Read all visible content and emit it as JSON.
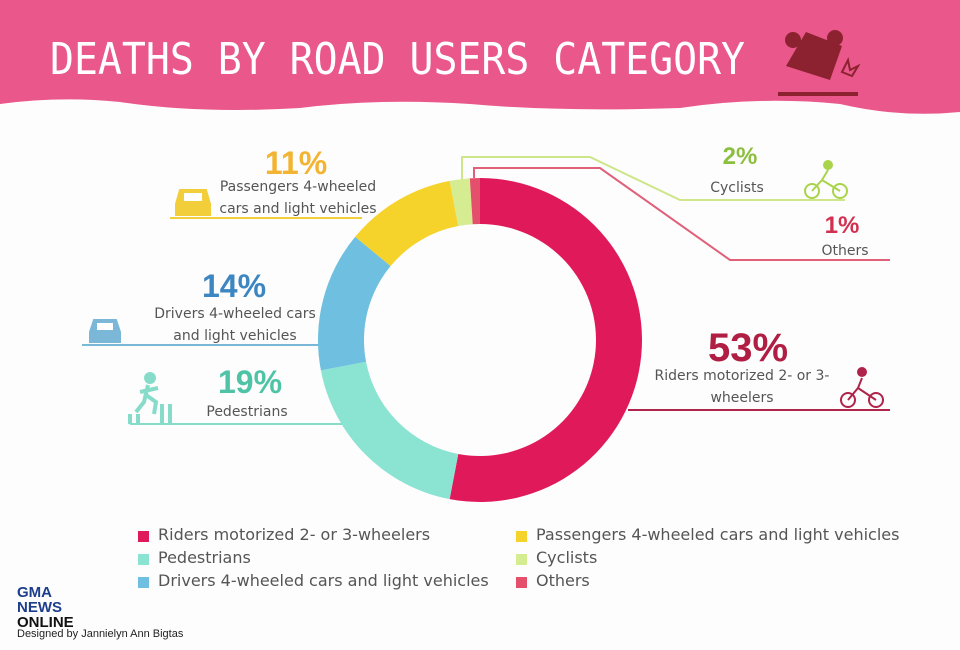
{
  "chart_data": {
    "type": "donut",
    "title": "DEATHS BY ROAD USERS CATEGORY",
    "categories": [
      "Riders motorized 2- or 3-wheelers",
      "Pedestrians",
      "Drivers 4-wheeled cars and light vehicles",
      "Passengers 4-wheeled cars and light vehicles",
      "Cyclists",
      "Others"
    ],
    "values": [
      53,
      19,
      14,
      11,
      2,
      1
    ],
    "value_labels": [
      "53%",
      "19%",
      "14%",
      "11%",
      "2%",
      "1%"
    ],
    "colors": [
      "#e0195a",
      "#8be3d2",
      "#6fc0e0",
      "#f6d32a",
      "#d6ec90",
      "#e4506c"
    ],
    "legend": true
  },
  "footer": {
    "logo": [
      "GMA",
      "NEWS",
      "ONLINE"
    ],
    "credit": "Designed by Jannielyn Ann Bigtas"
  }
}
